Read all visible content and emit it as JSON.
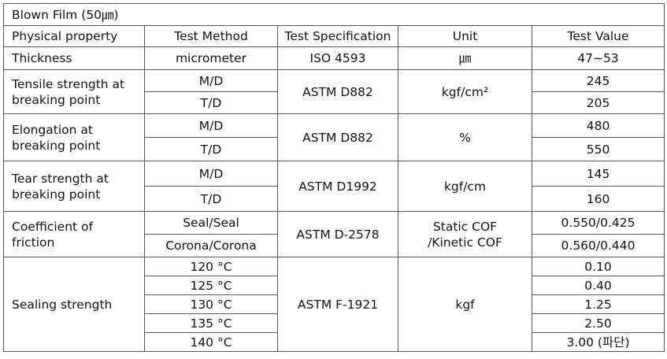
{
  "table": {
    "title": "Blown Film (50㎛)",
    "header": [
      "Physical property",
      "Test Method",
      "Test Specification",
      "Unit",
      "Test Value"
    ],
    "rows": [
      {
        "property": [
          "Thickness"
        ],
        "methods": [
          "micrometer"
        ],
        "specification": "ISO 4593",
        "unit": [
          "㎛"
        ],
        "values": [
          "47~53"
        ]
      },
      {
        "property": [
          "Tensile strength at",
          "breaking point"
        ],
        "methods": [
          "M/D",
          "T/D"
        ],
        "specification": "ASTM D882",
        "unit": [
          "kgf/cm²"
        ],
        "values": [
          "245",
          "205"
        ]
      },
      {
        "property": [
          "Elongation at",
          "breaking point"
        ],
        "methods": [
          "M/D",
          "T/D"
        ],
        "specification": "ASTM D882",
        "unit": [
          "%"
        ],
        "values": [
          "480",
          "550"
        ]
      },
      {
        "property": [
          "Tear strength at",
          "breaking point"
        ],
        "methods": [
          "M/D",
          "T/D"
        ],
        "specification": "ASTM D1992",
        "unit": [
          "kgf/cm"
        ],
        "values": [
          "145",
          "160"
        ]
      },
      {
        "property": [
          "Coefficient of",
          "friction"
        ],
        "methods": [
          "Seal/Seal",
          "Corona/Corona"
        ],
        "specification": "ASTM D-2578",
        "unit": [
          "Static COF",
          "/Kinetic COF"
        ],
        "values": [
          "0.550/0.425",
          "0.560/0.440"
        ]
      },
      {
        "property": [
          "Sealing strength"
        ],
        "methods": [
          "120 °C",
          "125 °C",
          "130 °C",
          "135 °C",
          "140 °C"
        ],
        "specification": "ASTM F-1921",
        "unit": [
          "kgf"
        ],
        "values": [
          "0.10",
          "0.40",
          "1.25",
          "2.50",
          "3.00 (파단)"
        ]
      }
    ]
  }
}
